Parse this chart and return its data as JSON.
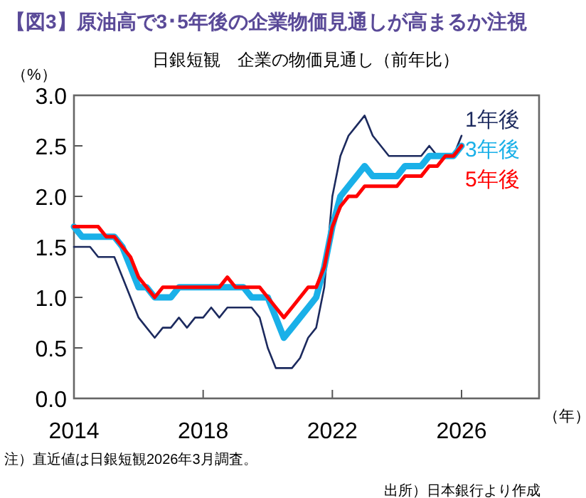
{
  "chart_data": {
    "type": "line",
    "title": "【図3】原油高で3･5年後の企業物価見通しが高まるか注視",
    "subtitle": "日銀短観　企業の物価見通し（前年比）",
    "ylabel": "（%）",
    "xlabel": "（年）",
    "x": [
      2014,
      2014.25,
      2014.5,
      2014.75,
      2015,
      2015.25,
      2015.5,
      2015.75,
      2016,
      2016.25,
      2016.5,
      2016.75,
      2017,
      2017.25,
      2017.5,
      2017.75,
      2018,
      2018.25,
      2018.5,
      2018.75,
      2019,
      2019.25,
      2019.5,
      2019.75,
      2020,
      2020.25,
      2020.5,
      2020.75,
      2021,
      2021.25,
      2021.5,
      2021.75,
      2022,
      2022.25,
      2022.5,
      2022.75,
      2023,
      2023.25,
      2023.5,
      2023.75,
      2024,
      2024.25,
      2024.5,
      2024.75,
      2025,
      2025.25,
      2025.5,
      2025.75,
      2026
    ],
    "series": [
      {
        "name": "1年後",
        "color": "#1c2a5e",
        "values": [
          1.5,
          1.5,
          1.5,
          1.4,
          1.4,
          1.4,
          1.2,
          1.0,
          0.8,
          0.7,
          0.6,
          0.7,
          0.7,
          0.8,
          0.7,
          0.8,
          0.8,
          0.9,
          0.8,
          0.9,
          0.9,
          0.9,
          0.9,
          0.8,
          0.5,
          0.3,
          0.3,
          0.3,
          0.4,
          0.6,
          0.7,
          1.1,
          2.0,
          2.4,
          2.6,
          2.7,
          2.8,
          2.6,
          2.5,
          2.4,
          2.4,
          2.4,
          2.4,
          2.4,
          2.5,
          2.4,
          2.4,
          2.4,
          2.6
        ]
      },
      {
        "name": "3年後",
        "color": "#1ab0e8",
        "values": [
          1.7,
          1.6,
          1.6,
          1.6,
          1.6,
          1.6,
          1.5,
          1.3,
          1.1,
          1.1,
          1.0,
          1.0,
          1.0,
          1.1,
          1.1,
          1.1,
          1.1,
          1.1,
          1.1,
          1.1,
          1.1,
          1.1,
          1.0,
          1.0,
          1.0,
          0.8,
          0.6,
          0.7,
          0.8,
          0.9,
          1.0,
          1.3,
          1.7,
          2.0,
          2.1,
          2.2,
          2.3,
          2.2,
          2.2,
          2.2,
          2.2,
          2.3,
          2.3,
          2.3,
          2.4,
          2.4,
          2.4,
          2.4,
          2.5
        ]
      },
      {
        "name": "5年後",
        "color": "#ff0000",
        "values": [
          1.7,
          1.7,
          1.7,
          1.7,
          1.6,
          1.6,
          1.5,
          1.4,
          1.2,
          1.1,
          1.0,
          1.1,
          1.1,
          1.1,
          1.1,
          1.1,
          1.1,
          1.1,
          1.1,
          1.2,
          1.1,
          1.1,
          1.1,
          1.1,
          1.0,
          0.9,
          0.8,
          0.9,
          1.0,
          1.1,
          1.1,
          1.3,
          1.7,
          1.9,
          2.0,
          2.0,
          2.1,
          2.1,
          2.1,
          2.1,
          2.1,
          2.2,
          2.2,
          2.2,
          2.3,
          2.3,
          2.4,
          2.4,
          2.5
        ]
      }
    ],
    "xlim": [
      2014,
      2028.4
    ],
    "xticks": [
      2014,
      2018,
      2022,
      2026
    ],
    "ylim": [
      0,
      3
    ],
    "yticks": [
      {
        "value": 0,
        "label": "0.0"
      },
      0.5,
      {
        "value": 1,
        "label": "1.0"
      },
      1.5,
      {
        "value": 2,
        "label": "2.0"
      },
      2.5,
      {
        "value": 3,
        "label": "3.0"
      }
    ],
    "grid": false,
    "legend": "top right",
    "annotations": [
      "注）直近値は日銀短観2026年3月調査。",
      "出所）日本銀行より作成"
    ]
  }
}
